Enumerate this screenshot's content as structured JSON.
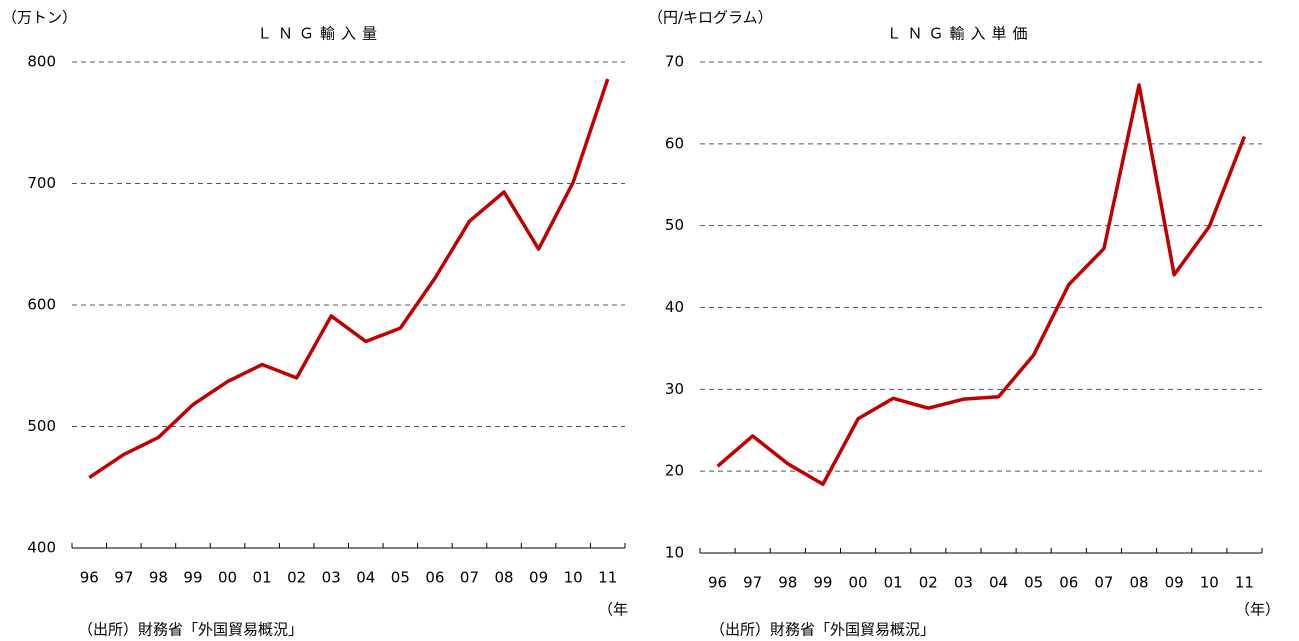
{
  "chart_data": [
    {
      "type": "line",
      "title": "ＬＮＧ輸入量",
      "y_label": "（万トン）",
      "x_label": "（年",
      "source": "（出所）財務省「外国貿易概況」",
      "categories": [
        "96",
        "97",
        "98",
        "99",
        "00",
        "01",
        "02",
        "03",
        "04",
        "05",
        "06",
        "07",
        "08",
        "09",
        "10",
        "11"
      ],
      "series": [
        {
          "name": "LNG輸入量",
          "color": "#c00000",
          "values": [
            458,
            477,
            491,
            518,
            537,
            551,
            540,
            591,
            570,
            581,
            622,
            669,
            693,
            646,
            701,
            786
          ]
        }
      ],
      "ylim": [
        400,
        800
      ],
      "yticks": [
        400,
        500,
        600,
        700,
        800
      ],
      "grid": true
    },
    {
      "type": "line",
      "title": "ＬＮＧ輸入単価",
      "y_label": "（円/キログラム）",
      "x_label": "（年）",
      "source": "（出所）財務省「外国貿易概況」",
      "categories": [
        "96",
        "97",
        "98",
        "99",
        "00",
        "01",
        "02",
        "03",
        "04",
        "05",
        "06",
        "07",
        "08",
        "09",
        "10",
        "11"
      ],
      "series": [
        {
          "name": "LNG輸入単価",
          "color": "#c00000",
          "values": [
            20.6,
            24.3,
            20.9,
            18.4,
            26.4,
            28.9,
            27.7,
            28.8,
            29.1,
            34.2,
            42.8,
            47.2,
            67.2,
            44.0,
            49.9,
            60.9
          ]
        }
      ],
      "ylim": [
        10,
        70
      ],
      "yticks": [
        10,
        20,
        30,
        40,
        50,
        60,
        70
      ],
      "grid": true
    }
  ]
}
